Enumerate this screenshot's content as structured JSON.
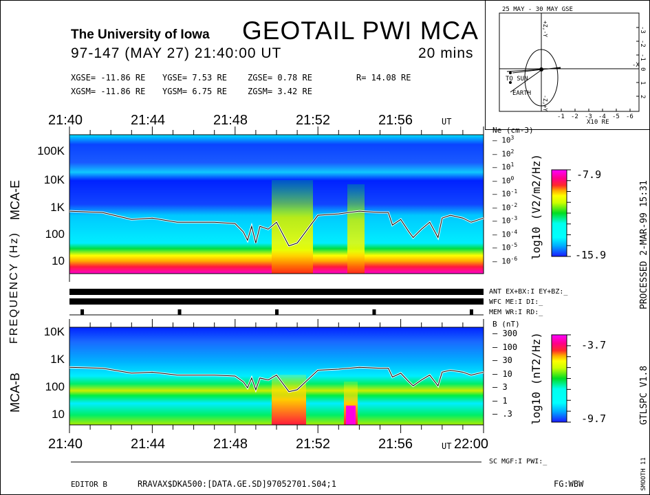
{
  "header": {
    "institution": "The University of Iowa",
    "title": "GEOTAIL PWI MCA",
    "date_line": "97-147 (MAY 27) 21:40:00 UT",
    "duration": "20 mins",
    "gse": {
      "x": "XGSE= -11.86 RE",
      "y": "YGSE=   7.53 RE",
      "z": "ZGSE=   0.78 RE",
      "r": "R= 14.08 RE"
    },
    "gsm": {
      "x": "XGSM= -11.86 RE",
      "y": "YGSM=   6.75 RE",
      "z": "ZGSM=   3.42 RE"
    }
  },
  "orbit_plot": {
    "title": "25 MAY - 30 MAY  GSE",
    "x_ticks": [
      "-1",
      "-2",
      "-3",
      "-4",
      "-5",
      "-6"
    ],
    "x_unit": "X10 RE",
    "y_ticks": [
      "-3",
      "-2",
      "-1",
      "0",
      "1",
      "2"
    ],
    "axis_labels": {
      "top": "+Z,-Y",
      "bottom": "-Z,+Y",
      "right": "-X"
    },
    "labels": {
      "sun": "TO SUN",
      "earth": "EARTH"
    }
  },
  "time_axis": {
    "top_ticks": [
      "21:40",
      "21:44",
      "21:48",
      "21:52",
      "21:56"
    ],
    "bottom_ticks": [
      "21:40",
      "21:44",
      "21:48",
      "21:52",
      "21:56"
    ],
    "ut_label": "UT",
    "end_label": "22:00"
  },
  "left_labels": {
    "mca_e": "MCA-E",
    "mca_b": "MCA-B",
    "frequency": "FREQUENCY (Hz)"
  },
  "status": {
    "ant": "ANT EX+BX:I EY+BZ:_",
    "wfc": "WFC ME:I     DI:_",
    "mem": "MEM WR:I     RD:_",
    "sc": "SC MGF:I  PWI:_"
  },
  "footer": {
    "editor": "EDITOR B",
    "file": "RRAVAX$DKA500:[DATA.GE.SD]97052701.S04;1",
    "fg": "FG:WBW"
  },
  "side_text": {
    "processed": "PROCESSED  2-MAR-99  15:31",
    "version": "GTLSPC  V1.8",
    "smooth": "SMOOTH 11"
  },
  "chart_data": [
    {
      "type": "heatmap",
      "title": "MCA-E",
      "xlabel": "UT",
      "x_range": [
        "21:40",
        "22:00"
      ],
      "ylabel": "FREQUENCY (Hz)",
      "y_scale": "log",
      "y_ticks": [
        "10",
        "100",
        "1K",
        "10K",
        "100K"
      ],
      "right_axis": {
        "label": "Ne (cm-3)",
        "ticks": [
          "10^3",
          "10^2",
          "10^1",
          "10^0",
          "10^-1",
          "10^-2",
          "10^-3",
          "10^-4",
          "10^-5",
          "10^-6"
        ]
      },
      "colorbar": {
        "label": "log10 (V2/m2/Hz)",
        "max": "-7.9",
        "min": "-15.9"
      },
      "overlay": "plasma frequency line (white/black)"
    },
    {
      "type": "heatmap",
      "title": "MCA-B",
      "xlabel": "UT",
      "x_range": [
        "21:40",
        "22:00"
      ],
      "ylabel": "FREQUENCY (Hz)",
      "y_scale": "log",
      "y_ticks": [
        "10",
        "100",
        "1K",
        "10K"
      ],
      "right_axis": {
        "label": "B (nT)",
        "ticks": [
          "300",
          "100",
          "30",
          "10",
          "3",
          "1",
          ".3"
        ]
      },
      "colorbar": {
        "label": "log10 (nT2/Hz)",
        "max": "-3.7",
        "min": "-9.7"
      },
      "overlay": "cyclotron frequency line (white/black)"
    }
  ],
  "colors": {
    "blue": "#0022ff",
    "cyan": "#00eeff",
    "green": "#00dd22",
    "yellow": "#ffff00",
    "red": "#ff1a3a",
    "magenta": "#ff00e0"
  }
}
